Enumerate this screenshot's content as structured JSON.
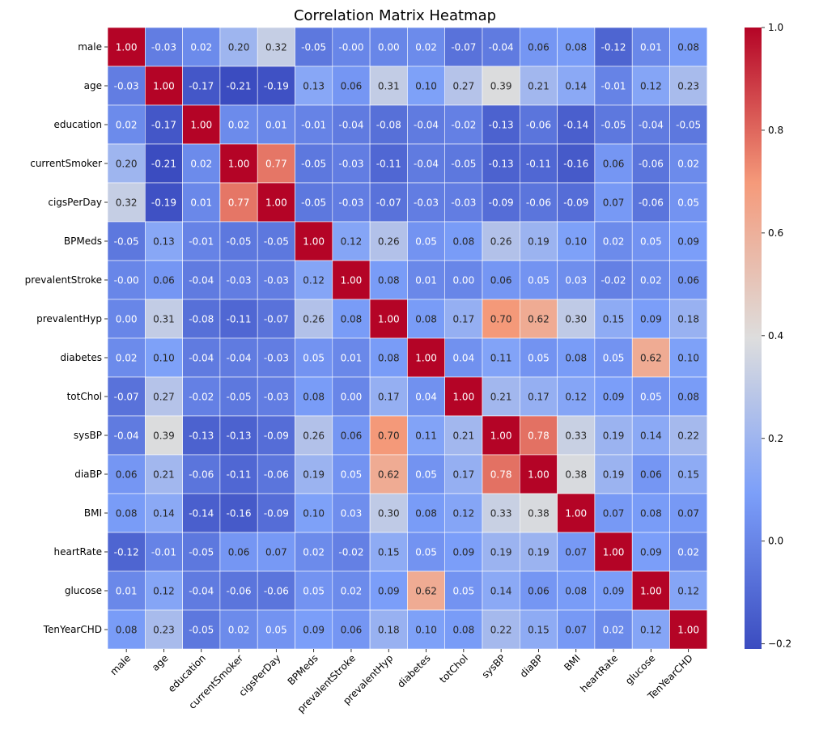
{
  "chart_data": {
    "type": "heatmap",
    "title": "Correlation Matrix Heatmap",
    "xlabel": "",
    "ylabel": "",
    "labels": [
      "male",
      "age",
      "education",
      "currentSmoker",
      "cigsPerDay",
      "BPMeds",
      "prevalentStroke",
      "prevalentHyp",
      "diabetes",
      "totChol",
      "sysBP",
      "diaBP",
      "BMI",
      "heartRate",
      "glucose",
      "TenYearCHD"
    ],
    "matrix": [
      [
        1.0,
        -0.03,
        0.02,
        0.2,
        0.32,
        -0.05,
        -0.0,
        0.0,
        0.02,
        -0.07,
        -0.04,
        0.06,
        0.08,
        -0.12,
        0.01,
        0.08
      ],
      [
        -0.03,
        1.0,
        -0.17,
        -0.21,
        -0.19,
        0.13,
        0.06,
        0.31,
        0.1,
        0.27,
        0.39,
        0.21,
        0.14,
        -0.01,
        0.12,
        0.23
      ],
      [
        0.02,
        -0.17,
        1.0,
        0.02,
        0.01,
        -0.01,
        -0.04,
        -0.08,
        -0.04,
        -0.02,
        -0.13,
        -0.06,
        -0.14,
        -0.05,
        -0.04,
        -0.05
      ],
      [
        0.2,
        -0.21,
        0.02,
        1.0,
        0.77,
        -0.05,
        -0.03,
        -0.11,
        -0.04,
        -0.05,
        -0.13,
        -0.11,
        -0.16,
        0.06,
        -0.06,
        0.02
      ],
      [
        0.32,
        -0.19,
        0.01,
        0.77,
        1.0,
        -0.05,
        -0.03,
        -0.07,
        -0.03,
        -0.03,
        -0.09,
        -0.06,
        -0.09,
        0.07,
        -0.06,
        0.05
      ],
      [
        -0.05,
        0.13,
        -0.01,
        -0.05,
        -0.05,
        1.0,
        0.12,
        0.26,
        0.05,
        0.08,
        0.26,
        0.19,
        0.1,
        0.02,
        0.05,
        0.09
      ],
      [
        -0.0,
        0.06,
        -0.04,
        -0.03,
        -0.03,
        0.12,
        1.0,
        0.08,
        0.01,
        0.0,
        0.06,
        0.05,
        0.03,
        -0.02,
        0.02,
        0.06
      ],
      [
        0.0,
        0.31,
        -0.08,
        -0.11,
        -0.07,
        0.26,
        0.08,
        1.0,
        0.08,
        0.17,
        0.7,
        0.62,
        0.3,
        0.15,
        0.09,
        0.18
      ],
      [
        0.02,
        0.1,
        -0.04,
        -0.04,
        -0.03,
        0.05,
        0.01,
        0.08,
        1.0,
        0.04,
        0.11,
        0.05,
        0.08,
        0.05,
        0.62,
        0.1
      ],
      [
        -0.07,
        0.27,
        -0.02,
        -0.05,
        -0.03,
        0.08,
        0.0,
        0.17,
        0.04,
        1.0,
        0.21,
        0.17,
        0.12,
        0.09,
        0.05,
        0.08
      ],
      [
        -0.04,
        0.39,
        -0.13,
        -0.13,
        -0.09,
        0.26,
        0.06,
        0.7,
        0.11,
        0.21,
        1.0,
        0.78,
        0.33,
        0.19,
        0.14,
        0.22
      ],
      [
        0.06,
        0.21,
        -0.06,
        -0.11,
        -0.06,
        0.19,
        0.05,
        0.62,
        0.05,
        0.17,
        0.78,
        1.0,
        0.38,
        0.19,
        0.06,
        0.15
      ],
      [
        0.08,
        0.14,
        -0.14,
        -0.16,
        -0.09,
        0.1,
        0.03,
        0.3,
        0.08,
        0.12,
        0.33,
        0.38,
        1.0,
        0.07,
        0.08,
        0.07
      ],
      [
        -0.12,
        -0.01,
        -0.05,
        0.06,
        0.07,
        0.02,
        -0.02,
        0.15,
        0.05,
        0.09,
        0.19,
        0.19,
        0.07,
        1.0,
        0.09,
        0.02
      ],
      [
        0.01,
        0.12,
        -0.04,
        -0.06,
        -0.06,
        0.05,
        0.02,
        0.09,
        0.62,
        0.05,
        0.14,
        0.06,
        0.08,
        0.09,
        1.0,
        0.12
      ],
      [
        0.08,
        0.23,
        -0.05,
        0.02,
        0.05,
        0.09,
        0.06,
        0.18,
        0.1,
        0.08,
        0.22,
        0.15,
        0.07,
        0.02,
        0.12,
        1.0
      ]
    ],
    "colorbar": {
      "colormap": "coolwarm",
      "min": -0.21,
      "max": 1.0,
      "ticks": [
        1.0,
        0.8,
        0.6,
        0.4,
        0.2,
        0.0,
        -0.2
      ],
      "tick_labels": [
        "1.0",
        "0.8",
        "0.6",
        "0.4",
        "0.2",
        "0.0",
        "−0.2"
      ]
    },
    "grid": true,
    "legend": "right"
  }
}
